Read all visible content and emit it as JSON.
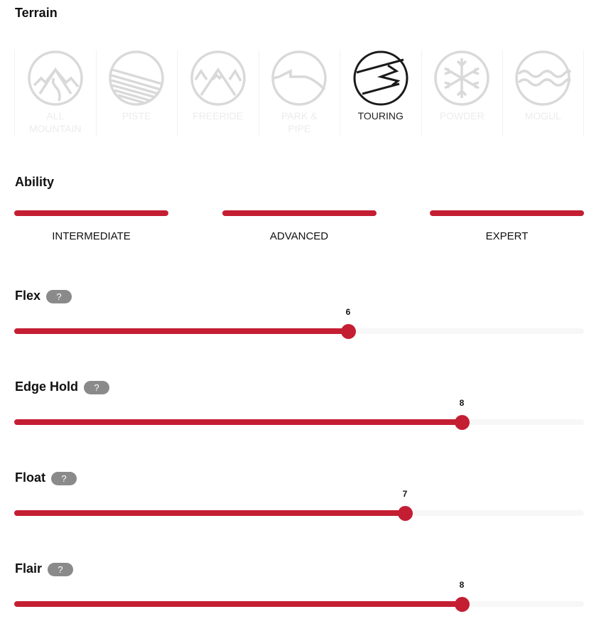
{
  "terrain": {
    "title": "Terrain",
    "items": [
      {
        "label": "ALL MOUNTAIN",
        "icon": "all-mountain-icon",
        "selected": false
      },
      {
        "label": "PISTE",
        "icon": "piste-icon",
        "selected": false
      },
      {
        "label": "FREERIDE",
        "icon": "freeride-icon",
        "selected": false
      },
      {
        "label": "PARK & PIPE",
        "icon": "park-pipe-icon",
        "selected": false
      },
      {
        "label": "TOURING",
        "icon": "touring-icon",
        "selected": true
      },
      {
        "label": "POWDER",
        "icon": "powder-icon",
        "selected": false
      },
      {
        "label": "MOGUL",
        "icon": "mogul-icon",
        "selected": false
      }
    ]
  },
  "ability": {
    "title": "Ability",
    "levels": [
      "INTERMEDIATE",
      "ADVANCED",
      "EXPERT"
    ]
  },
  "sliders": [
    {
      "label": "Flex",
      "help": "?",
      "value": 6,
      "max": 10
    },
    {
      "label": "Edge Hold",
      "help": "?",
      "value": 8,
      "max": 10
    },
    {
      "label": "Float",
      "help": "?",
      "value": 7,
      "max": 10
    },
    {
      "label": "Flair",
      "help": "?",
      "value": 8,
      "max": 10
    }
  ],
  "colors": {
    "accent": "#c41e33",
    "inactive_icon": "#d9d9d9",
    "selected_icon": "#1a1a1a",
    "help_badge": "#8a8a8a"
  }
}
